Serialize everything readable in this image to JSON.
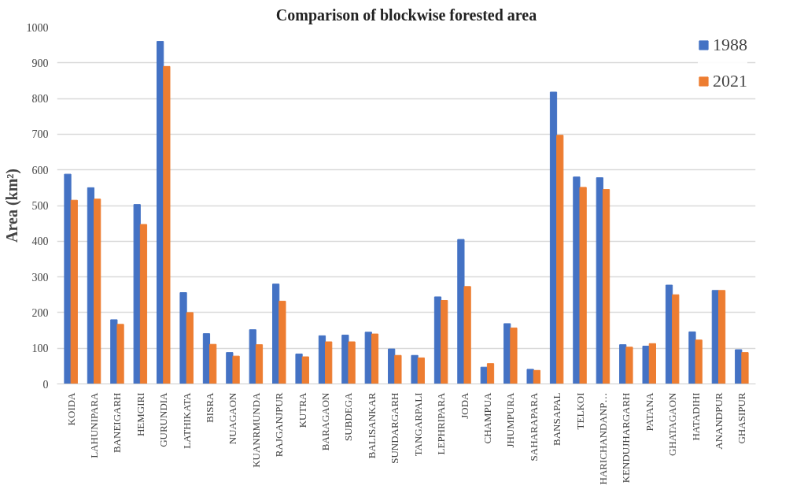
{
  "chart_data": {
    "type": "bar",
    "title": "Comparison of blockwise forested area",
    "ylabel": "Area (km²)",
    "categories": [
      "KOIDA",
      "LAHUNIPARA",
      "BANEIGARH",
      "HEMGIRI",
      "GURUNDIA",
      "LATHIKATA",
      "BISRA",
      "NUAGAON",
      "KUANRMUNDA",
      "RAJGANJPUR",
      "KUTRA",
      "BARAGAON",
      "SUBDEGA",
      "BALISANKAR",
      "SUNDARGARH",
      "TANGARPALI",
      "LEPHRIPARA",
      "JODA",
      "CHAMPUA",
      "JHUMPURA",
      "SAHARAPARA",
      "BANSAPAL",
      "TELKOI",
      "HARICHANDANP…",
      "KENDUJHARGARH",
      "PATANA",
      "GHATAGAON",
      "HATADIHI",
      "ANANDPUR",
      "GHASIPUR"
    ],
    "series": [
      {
        "name": "1988",
        "color": "#4472c4",
        "values": [
          588,
          550,
          180,
          503,
          960,
          256,
          141,
          88,
          152,
          280,
          84,
          135,
          137,
          145,
          98,
          80,
          244,
          405,
          47,
          169,
          41,
          818,
          580,
          578,
          110,
          106,
          277,
          146,
          262,
          96
        ]
      },
      {
        "name": "2021",
        "color": "#ed7d31",
        "values": [
          515,
          518,
          167,
          447,
          890,
          200,
          111,
          78,
          110,
          232,
          76,
          118,
          118,
          140,
          80,
          73,
          234,
          273,
          57,
          157,
          38,
          697,
          551,
          545,
          103,
          113,
          250,
          123,
          262,
          88
        ]
      }
    ],
    "ylim": [
      0,
      1000
    ],
    "yticks": [
      0,
      100,
      200,
      300,
      400,
      500,
      600,
      700,
      800,
      900,
      1000
    ],
    "grid": "y",
    "legend": "top right"
  }
}
